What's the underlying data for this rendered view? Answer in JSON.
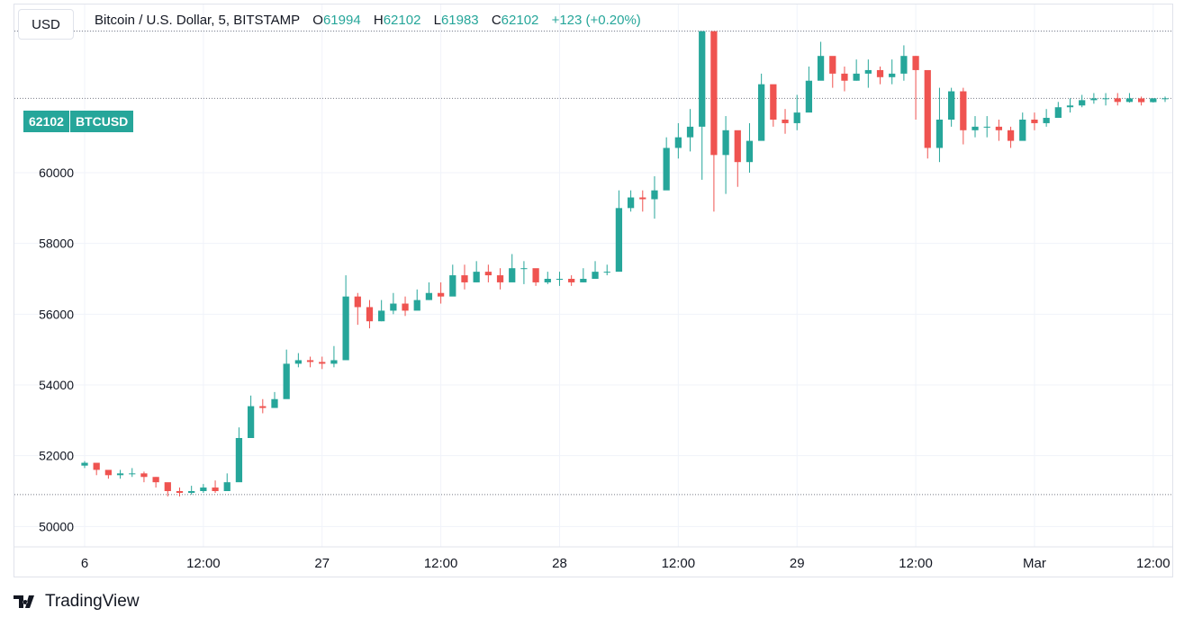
{
  "header": {
    "currency_button": "USD",
    "symbol": "Bitcoin / U.S. Dollar, 5, BITSTAMP",
    "open_label": "O",
    "open": "61994",
    "high_label": "H",
    "high": "62102",
    "low_label": "L",
    "low": "61983",
    "close_label": "C",
    "close": "62102",
    "change": "+123 (+0.20%)"
  },
  "price_badge": {
    "value": "62102",
    "ticker": "BTCUSD"
  },
  "brand": {
    "name": "TradingView",
    "icon": "tradingview-logo-icon"
  },
  "colors": {
    "up": "#26a69a",
    "down": "#ef5350",
    "grid": "#f0f3fa",
    "axis_text": "#131722"
  },
  "chart_data": {
    "type": "candlestick",
    "title": "Bitcoin / U.S. Dollar, 5, BITSTAMP",
    "ylim": [
      49500,
      64500
    ],
    "yticks": [
      64000,
      60000,
      58000,
      56000,
      54000,
      52000,
      50000
    ],
    "xticks": [
      "6",
      "12:00",
      "27",
      "12:00",
      "28",
      "12:00",
      "29",
      "12:00",
      "Mar",
      "12:00"
    ],
    "xlim": [
      0,
      91
    ],
    "xtick_positions": [
      0,
      10,
      20,
      30,
      40,
      50,
      60,
      70,
      80,
      90
    ],
    "reference_lines": [
      64000,
      62102,
      50900
    ],
    "last_price": 62102,
    "series": [
      {
        "x": [
          0,
          1,
          2,
          3,
          4,
          5,
          6,
          7,
          8,
          9,
          10,
          11,
          12,
          13,
          14,
          15,
          16,
          17,
          18,
          19,
          20,
          21,
          22,
          23,
          24,
          25,
          26,
          27,
          28,
          29,
          30,
          31,
          32,
          33,
          34,
          35,
          36,
          37,
          38,
          39,
          40,
          41,
          42,
          43,
          44,
          45,
          46,
          47,
          48,
          49,
          50,
          51,
          52,
          53,
          54,
          55,
          56,
          57,
          58,
          59,
          60,
          61,
          62,
          63,
          64,
          65,
          66,
          67,
          68,
          69,
          70,
          71,
          72,
          73,
          74,
          75,
          76,
          77,
          78,
          79,
          80,
          81,
          82,
          83,
          84,
          85,
          86,
          87,
          88,
          89,
          90,
          91
        ],
        "close": [
          51800,
          51600,
          51450,
          51500,
          51500,
          51400,
          51250,
          51000,
          50950,
          51000,
          51100,
          51000,
          51250,
          52500,
          53400,
          53350,
          53600,
          54600,
          54700,
          54650,
          54600,
          54700,
          56500,
          56200,
          55800,
          56100,
          56300,
          56100,
          56400,
          56600,
          56500,
          57100,
          56900,
          57200,
          57100,
          56900,
          57300,
          57300,
          56900,
          57000,
          57000,
          56900,
          57000,
          57200,
          57200,
          59000,
          59300,
          59250,
          59500,
          60700,
          61000,
          61300,
          64000,
          60500,
          61200,
          60300,
          60900,
          62500,
          61500,
          61400,
          61700,
          62600,
          63300,
          62800,
          62600,
          62800,
          62900,
          62700,
          62800,
          63300,
          62900,
          60700,
          61500,
          62300,
          61200,
          61300,
          61300,
          61200,
          60900,
          61500,
          61400,
          61550,
          61850,
          61900,
          62050,
          62100,
          62102,
          62000,
          62100,
          61994,
          62102,
          62102
        ],
        "low": [
          51650,
          51450,
          51350,
          51350,
          51400,
          51250,
          51100,
          50850,
          50850,
          50900,
          50950,
          50950,
          51100,
          52200,
          53200,
          53200,
          53400,
          54400,
          54500,
          54500,
          54450,
          54500,
          55900,
          55700,
          55600,
          55800,
          56000,
          55950,
          56200,
          56400,
          56300,
          56700,
          56700,
          56900,
          56900,
          56700,
          57000,
          56850,
          56800,
          56850,
          56800,
          56800,
          56900,
          57000,
          57100,
          58500,
          58900,
          58900,
          58700,
          60300,
          60400,
          60600,
          59800,
          58900,
          59400,
          59600,
          60000,
          61200,
          61300,
          61100,
          61200,
          61800,
          62700,
          62400,
          62300,
          62600,
          62400,
          62500,
          62500,
          62600,
          61500,
          60400,
          60300,
          61300,
          60800,
          61000,
          61000,
          60900,
          60700,
          61300,
          61200,
          61300,
          61600,
          61700,
          61850,
          61950,
          61900,
          61900,
          61980,
          61900,
          61983,
          62000
        ],
        "high": [
          51850,
          51750,
          51550,
          51600,
          51650,
          51550,
          51400,
          51200,
          51100,
          51150,
          51200,
          51300,
          51500,
          52800,
          53700,
          53600,
          53800,
          55000,
          54900,
          54800,
          54800,
          55100,
          57100,
          56600,
          56400,
          56400,
          56600,
          56500,
          56700,
          56900,
          56900,
          57400,
          57400,
          57500,
          57400,
          57300,
          57700,
          57500,
          57200,
          57200,
          57200,
          57100,
          57300,
          57500,
          57400,
          59500,
          59500,
          59500,
          59900,
          61000,
          61400,
          61800,
          64000,
          61300,
          61600,
          61100,
          61400,
          62800,
          62000,
          61800,
          62200,
          63000,
          63700,
          63200,
          63000,
          63200,
          63200,
          63000,
          63200,
          63600,
          63300,
          62300,
          62400,
          62400,
          62400,
          61600,
          61600,
          61500,
          61300,
          61700,
          61700,
          61800,
          62000,
          62100,
          62200,
          62250,
          62250,
          62250,
          62250,
          62150,
          62102,
          62150
        ]
      }
    ]
  }
}
